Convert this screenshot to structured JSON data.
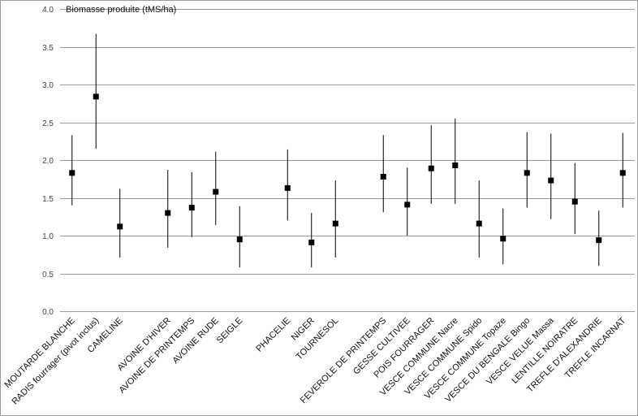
{
  "chart_data": {
    "type": "scatter",
    "ylabel": "Biomasse produite (tMS/ha)",
    "ylim": [
      0,
      4
    ],
    "yticks": [
      "0.0",
      "0.5",
      "1.0",
      "1.5",
      "2.0",
      "2.5",
      "3.0",
      "3.5",
      "4.0"
    ],
    "grid": true,
    "error_bars": true,
    "categories": [
      "MOUTARDE BLANCHE",
      "RADIS fourrager (pivot inclus)",
      "CAMELINE",
      "",
      "AVOINE D'HIVER",
      "AVOINE DE PRINTEMPS",
      "AVOINE RUDE",
      "SEIGLE",
      "",
      "PHACELIE",
      "NIGER",
      "TOURNESOL",
      "",
      "FEVEROLE DE PRINTEMPS",
      "GESSE CULTIVEE",
      "POIS FOURRAGER",
      "VESCE COMMUNE Nacre",
      "VESCE COMMUNE Spido",
      "VESCE COMMUNE Topaze",
      "VESCE DU BENGALE Bingo",
      "VESCE VELUE Massa",
      "LENTILLE NOIRATRE",
      "TREFLE D'ALEXANDRIE",
      "TREFLE INCARNAT"
    ],
    "values": [
      1.83,
      2.84,
      1.12,
      null,
      1.3,
      1.37,
      1.58,
      0.95,
      null,
      1.63,
      0.91,
      1.16,
      null,
      1.78,
      1.41,
      1.89,
      1.93,
      1.16,
      0.96,
      1.83,
      1.73,
      1.45,
      0.94,
      1.83
    ],
    "error_low": [
      1.4,
      2.15,
      0.71,
      null,
      0.84,
      0.98,
      1.14,
      0.58,
      null,
      1.2,
      0.58,
      0.71,
      null,
      1.31,
      1.0,
      1.42,
      1.42,
      0.71,
      0.62,
      1.37,
      1.22,
      1.02,
      0.6,
      1.37
    ],
    "error_high": [
      2.33,
      3.67,
      1.62,
      null,
      1.87,
      1.84,
      2.11,
      1.39,
      null,
      2.14,
      1.3,
      1.73,
      null,
      2.33,
      1.9,
      2.46,
      2.55,
      1.73,
      1.36,
      2.37,
      2.35,
      1.96,
      1.33,
      2.36
    ]
  }
}
